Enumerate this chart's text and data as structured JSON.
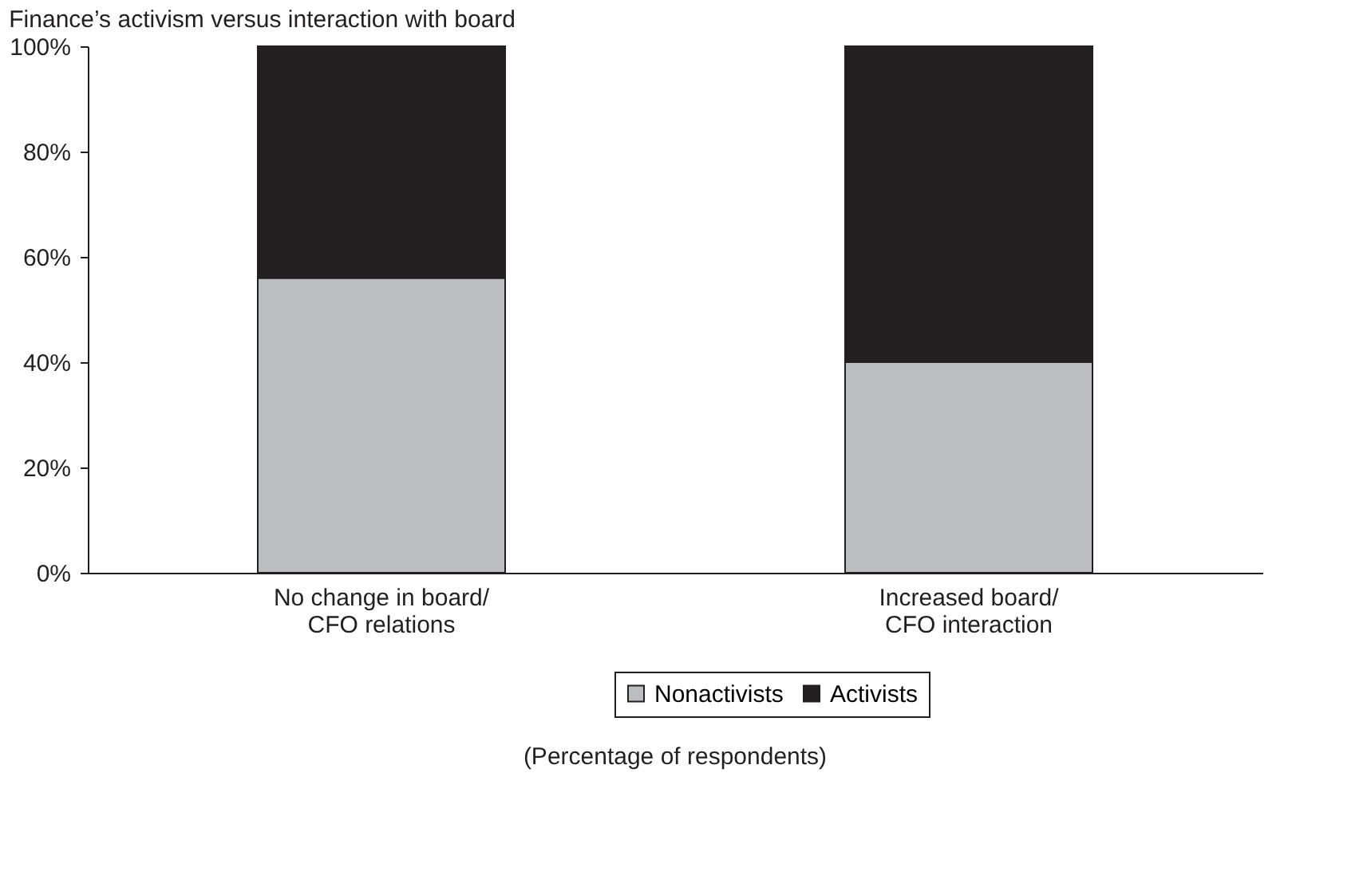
{
  "chart_data": {
    "type": "bar",
    "stacked": true,
    "title": "Finance’s activism versus interaction with board",
    "categories": [
      "No change in board/ CFO relations",
      "Increased board/ CFO interaction"
    ],
    "series": [
      {
        "name": "Nonactivists",
        "color": "#bcbdc0",
        "values": [
          56,
          40
        ]
      },
      {
        "name": "Activists",
        "color": "#231f20",
        "values": [
          44,
          60
        ]
      }
    ],
    "ylim": [
      0,
      100
    ],
    "yticks": [
      {
        "value": 0,
        "label": "0%"
      },
      {
        "value": 20,
        "label": "20%"
      },
      {
        "value": 40,
        "label": "40%"
      },
      {
        "value": 60,
        "label": "60%"
      },
      {
        "value": 80,
        "label": "80%"
      },
      {
        "value": 100,
        "label": "100%"
      }
    ],
    "grid": false,
    "legend": "bottom",
    "annotations": [
      "(Percentage of respondents)"
    ]
  }
}
